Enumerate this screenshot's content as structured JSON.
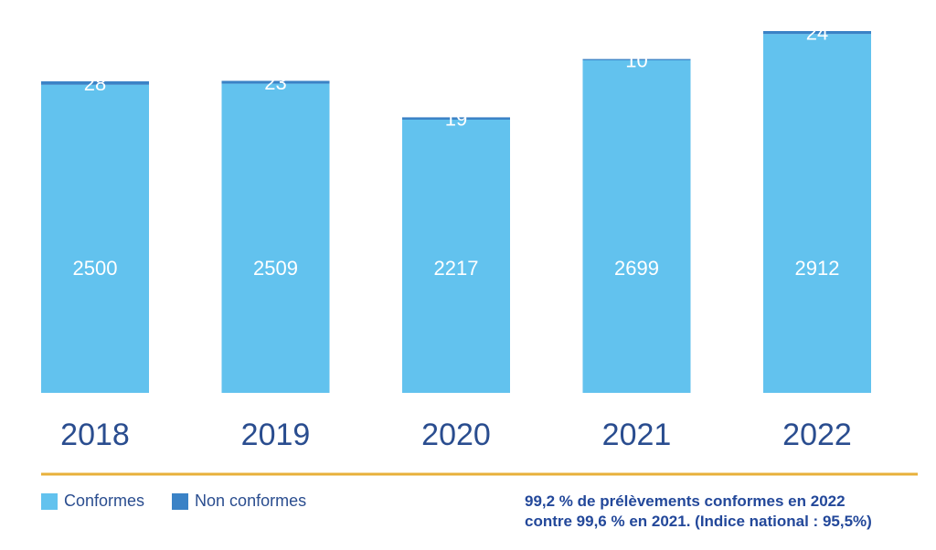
{
  "chart_data": {
    "type": "bar",
    "stacked": true,
    "categories": [
      "2018",
      "2019",
      "2020",
      "2021",
      "2022"
    ],
    "series": [
      {
        "name": "Conformes",
        "values": [
          2500,
          2509,
          2217,
          2699,
          2912
        ],
        "color": "#62c2ee"
      },
      {
        "name": "Non conformes",
        "values": [
          28,
          23,
          19,
          10,
          24
        ],
        "color": "#3a82c6"
      }
    ],
    "ylim": [
      0,
      2936
    ],
    "grid": false,
    "legend": "bottom-left"
  },
  "colors": {
    "axis_text": "#2a4d8f",
    "baseline_rule": "#e8b03a",
    "value_label": "#ffffff"
  },
  "note": {
    "line1": "99,2 % de prélèvements conformes en 2022",
    "line2": "contre 99,6 % en 2021. (Indice national : 95,5%)"
  }
}
